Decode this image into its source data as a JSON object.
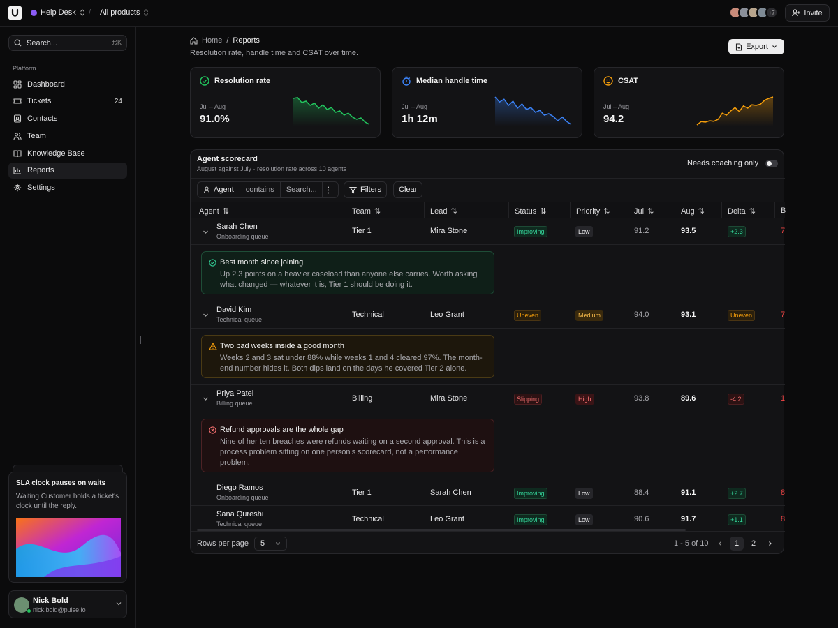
{
  "topbar": {
    "workspace": "Help Desk",
    "product_scope": "All products",
    "avatars_more": "+7",
    "invite_label": "Invite"
  },
  "sidebar": {
    "search_placeholder": "Search...",
    "search_shortcut": "⌘K",
    "section_label": "Platform",
    "items": [
      {
        "label": "Dashboard",
        "icon": "dashboard-icon"
      },
      {
        "label": "Tickets",
        "icon": "ticket-icon",
        "badge": "24"
      },
      {
        "label": "Contacts",
        "icon": "contacts-icon"
      },
      {
        "label": "Team",
        "icon": "team-icon"
      },
      {
        "label": "Knowledge Base",
        "icon": "book-icon"
      },
      {
        "label": "Reports",
        "icon": "bar-chart-icon",
        "active": true
      },
      {
        "label": "Settings",
        "icon": "gear-icon"
      }
    ],
    "promo": {
      "title": "SLA clock pauses on waits",
      "body": "Waiting Customer holds a ticket's clock until the reply."
    },
    "user": {
      "name": "Nick Bold",
      "email": "nick.bold@pulse.io"
    }
  },
  "page": {
    "breadcrumb_home": "Home",
    "breadcrumb_current": "Reports",
    "subtitle": "Resolution rate, handle time and CSAT over time.",
    "export_label": "Export"
  },
  "kpis": [
    {
      "title": "Resolution rate",
      "period": "Jul – Aug",
      "value": "91.0%",
      "color": "#22c55e",
      "trend": [
        0.95,
        0.98,
        0.8,
        0.85,
        0.7,
        0.78,
        0.6,
        0.72,
        0.55,
        0.62,
        0.45,
        0.5,
        0.35,
        0.42,
        0.28,
        0.2,
        0.25,
        0.1,
        0.02
      ]
    },
    {
      "title": "Median handle time",
      "period": "Jul – Aug",
      "value": "1h 12m",
      "color": "#3b82f6",
      "trend": [
        1.0,
        0.82,
        0.92,
        0.7,
        0.85,
        0.6,
        0.75,
        0.55,
        0.62,
        0.45,
        0.52,
        0.35,
        0.4,
        0.3,
        0.15,
        0.28,
        0.12,
        0.02
      ]
    },
    {
      "title": "CSAT",
      "period": "Jul – Aug",
      "value": "94.2",
      "color": "#f59e0b",
      "trend": [
        0.0,
        0.12,
        0.1,
        0.15,
        0.13,
        0.2,
        0.42,
        0.35,
        0.5,
        0.62,
        0.48,
        0.68,
        0.6,
        0.72,
        0.7,
        0.74,
        0.88,
        0.95,
        1.0
      ]
    }
  ],
  "scorecard": {
    "title": "Agent scorecard",
    "subtitle": "August against July · resolution rate across 10 agents",
    "coaching_label": "Needs coaching only",
    "filter_field": "Agent",
    "filter_op": "contains",
    "filter_placeholder": "Search...",
    "filters_label": "Filters",
    "clear_label": "Clear",
    "columns": [
      "Agent",
      "Team",
      "Lead",
      "Status",
      "Priority",
      "Jul",
      "Aug",
      "Delta",
      "B"
    ],
    "rows": [
      {
        "name": "Sarah Chen",
        "queue": "Onboarding queue",
        "team": "Tier 1",
        "lead": "Mira Stone",
        "status": "Improving",
        "priority": "Low",
        "jul": "91.2",
        "aug": "93.5",
        "delta": "+2.3",
        "extra": "7",
        "note": {
          "kind": "good",
          "title": "Best month since joining",
          "body": "Up 2.3 points on a heavier caseload than anyone else carries. Worth asking what changed — whatever it is, Tier 1 should be doing it."
        }
      },
      {
        "name": "David Kim",
        "queue": "Technical queue",
        "team": "Technical",
        "lead": "Leo Grant",
        "status": "Uneven",
        "priority": "Medium",
        "jul": "94.0",
        "aug": "93.1",
        "delta": "Uneven",
        "extra": "7",
        "note": {
          "kind": "warn",
          "title": "Two bad weeks inside a good month",
          "body": "Weeks 2 and 3 sat under 88% while weeks 1 and 4 cleared 97%. The month-end number hides it. Both dips land on the days he covered Tier 2 alone."
        }
      },
      {
        "name": "Priya Patel",
        "queue": "Billing queue",
        "team": "Billing",
        "lead": "Mira Stone",
        "status": "Slipping",
        "priority": "High",
        "jul": "93.8",
        "aug": "89.6",
        "delta": "-4.2",
        "extra": "1",
        "note": {
          "kind": "bad",
          "title": "Refund approvals are the whole gap",
          "body": "Nine of her ten breaches were refunds waiting on a second approval. This is a process problem sitting on one person's scorecard, not a performance problem."
        }
      },
      {
        "name": "Diego Ramos",
        "queue": "Onboarding queue",
        "team": "Tier 1",
        "lead": "Sarah Chen",
        "status": "Improving",
        "priority": "Low",
        "jul": "88.4",
        "aug": "91.1",
        "delta": "+2.7",
        "extra": "8"
      },
      {
        "name": "Sana Qureshi",
        "queue": "Technical queue",
        "team": "Technical",
        "lead": "Leo Grant",
        "status": "Improving",
        "priority": "Low",
        "jul": "90.6",
        "aug": "91.7",
        "delta": "+1.1",
        "extra": "8"
      }
    ],
    "rows_per_page_label": "Rows per page",
    "rows_per_page": "5",
    "range": "1 - 5 of 10",
    "pages": [
      "1",
      "2"
    ],
    "current_page": "1"
  }
}
